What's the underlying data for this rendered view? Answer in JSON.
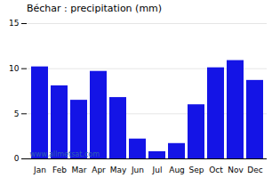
{
  "chart_data": {
    "type": "bar",
    "title": "Béchar : precipitation (mm)",
    "categories": [
      "Jan",
      "Feb",
      "Mar",
      "Apr",
      "May",
      "Jun",
      "Jul",
      "Aug",
      "Sep",
      "Oct",
      "Nov",
      "Dec"
    ],
    "values": [
      10.2,
      8.1,
      6.5,
      9.7,
      6.8,
      2.2,
      0.8,
      1.7,
      6.0,
      10.1,
      10.9,
      8.7
    ],
    "color": "#1414e6",
    "ylim": [
      0,
      15
    ],
    "yticks": [
      0,
      5,
      10,
      15
    ],
    "grid": true,
    "annotations": [
      "www.allmetsat.com"
    ]
  }
}
